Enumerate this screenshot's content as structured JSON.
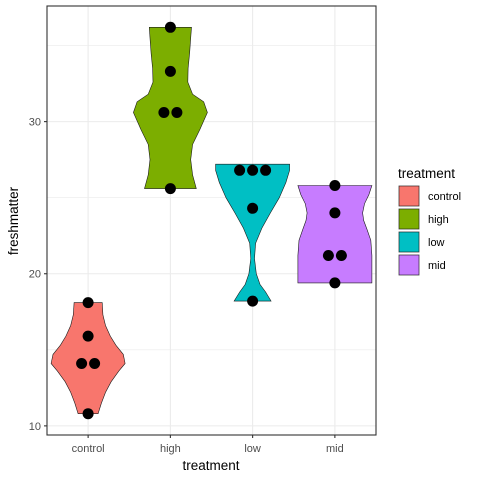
{
  "chart_data": {
    "type": "violin",
    "xlabel": "treatment",
    "ylabel": "freshmatter",
    "categories": [
      "control",
      "high",
      "low",
      "mid"
    ],
    "ylim": [
      9.4,
      37.6
    ],
    "yticks": [
      10,
      20,
      30
    ],
    "grid": true,
    "legend": {
      "title": "treatment",
      "placement": "right",
      "entries": [
        "control",
        "high",
        "low",
        "mid"
      ]
    },
    "colors": {
      "control": "#F8766D",
      "high": "#7CAE00",
      "low": "#00BFC4",
      "mid": "#C77CFF"
    },
    "points": {
      "control": [
        18.1,
        15.9,
        14.1,
        14.1,
        10.8
      ],
      "high": [
        36.2,
        33.3,
        30.6,
        30.6,
        25.6
      ],
      "low": [
        26.8,
        26.8,
        26.8,
        24.3,
        18.2
      ],
      "mid": [
        25.8,
        24.0,
        21.2,
        21.2,
        19.4
      ]
    },
    "violins": {
      "control": [
        [
          10.8,
          0.27
        ],
        [
          11.5,
          0.36
        ],
        [
          12.2,
          0.47
        ],
        [
          12.9,
          0.62
        ],
        [
          13.6,
          0.83
        ],
        [
          14.1,
          1.0
        ],
        [
          14.7,
          0.95
        ],
        [
          15.3,
          0.75
        ],
        [
          15.9,
          0.6
        ],
        [
          16.6,
          0.47
        ],
        [
          17.3,
          0.4
        ],
        [
          18.1,
          0.38
        ]
      ],
      "high": [
        [
          25.6,
          0.7
        ],
        [
          26.5,
          0.6
        ],
        [
          27.5,
          0.55
        ],
        [
          28.5,
          0.6
        ],
        [
          29.5,
          0.8
        ],
        [
          30.6,
          1.0
        ],
        [
          31.3,
          0.9
        ],
        [
          31.8,
          0.6
        ],
        [
          32.6,
          0.47
        ],
        [
          33.5,
          0.48
        ],
        [
          34.5,
          0.52
        ],
        [
          35.5,
          0.55
        ],
        [
          36.2,
          0.57
        ]
      ],
      "low": [
        [
          18.2,
          0.5
        ],
        [
          18.8,
          0.35
        ],
        [
          19.3,
          0.2
        ],
        [
          20.0,
          0.1
        ],
        [
          21.0,
          0.05
        ],
        [
          22.0,
          0.08
        ],
        [
          23.0,
          0.25
        ],
        [
          24.0,
          0.48
        ],
        [
          25.0,
          0.72
        ],
        [
          26.0,
          0.9
        ],
        [
          26.8,
          1.0
        ],
        [
          27.2,
          1.0
        ]
      ],
      "mid": [
        [
          19.4,
          1.0
        ],
        [
          20.2,
          1.0
        ],
        [
          21.2,
          1.0
        ],
        [
          22.2,
          0.97
        ],
        [
          22.9,
          0.87
        ],
        [
          23.5,
          0.78
        ],
        [
          24.0,
          0.75
        ],
        [
          24.6,
          0.8
        ],
        [
          25.2,
          0.92
        ],
        [
          25.8,
          1.0
        ]
      ]
    }
  }
}
